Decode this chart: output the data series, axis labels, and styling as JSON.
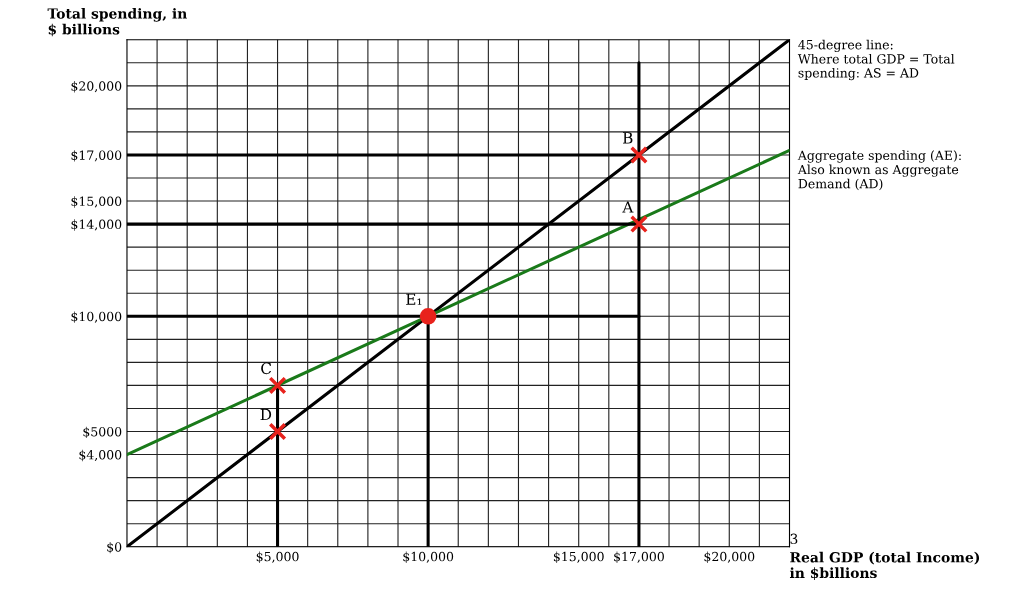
{
  "chart_data": {
    "type": "line",
    "xlabel": "Real GDP (total Income)\nin $billions",
    "ylabel": "Total spending, in\n$ billions",
    "xlim": [
      0,
      22000
    ],
    "ylim": [
      0,
      22000
    ],
    "xticks": [
      {
        "value": 1000,
        "label": null
      },
      {
        "value": 2000,
        "label": null
      },
      {
        "value": 3000,
        "label": null
      },
      {
        "value": 4000,
        "label": null
      },
      {
        "value": 5000,
        "label": "$5,000"
      },
      {
        "value": 6000,
        "label": null
      },
      {
        "value": 7000,
        "label": null
      },
      {
        "value": 8000,
        "label": null
      },
      {
        "value": 9000,
        "label": null
      },
      {
        "value": 10000,
        "label": "$10,000"
      },
      {
        "value": 11000,
        "label": null
      },
      {
        "value": 12000,
        "label": null
      },
      {
        "value": 13000,
        "label": null
      },
      {
        "value": 14000,
        "label": null
      },
      {
        "value": 15000,
        "label": "$15,000"
      },
      {
        "value": 16000,
        "label": null
      },
      {
        "value": 17000,
        "label": "$17,000"
      },
      {
        "value": 18000,
        "label": null
      },
      {
        "value": 19000,
        "label": null
      },
      {
        "value": 20000,
        "label": "$20,000"
      },
      {
        "value": 21000,
        "label": null
      }
    ],
    "yticks": [
      {
        "value": 0,
        "label": "$0"
      },
      {
        "value": 1000,
        "label": null
      },
      {
        "value": 2000,
        "label": null
      },
      {
        "value": 3000,
        "label": null
      },
      {
        "value": 4000,
        "label": "$4,000"
      },
      {
        "value": 5000,
        "label": "$5000"
      },
      {
        "value": 6000,
        "label": null
      },
      {
        "value": 7000,
        "label": null
      },
      {
        "value": 8000,
        "label": null
      },
      {
        "value": 9000,
        "label": null
      },
      {
        "value": 10000,
        "label": "$10,000"
      },
      {
        "value": 11000,
        "label": null
      },
      {
        "value": 12000,
        "label": null
      },
      {
        "value": 13000,
        "label": null
      },
      {
        "value": 14000,
        "label": "$14,000"
      },
      {
        "value": 15000,
        "label": "$15,000"
      },
      {
        "value": 16000,
        "label": null
      },
      {
        "value": 17000,
        "label": "$17,000"
      },
      {
        "value": 18000,
        "label": null
      },
      {
        "value": 19000,
        "label": null
      },
      {
        "value": 20000,
        "label": "$20,000"
      },
      {
        "value": 21000,
        "label": null
      }
    ],
    "grid": true,
    "series": [
      {
        "color": "#000000",
        "x": [
          0,
          22000
        ],
        "values": [
          0,
          22000
        ]
      },
      {
        "color": "#1a7a1a",
        "x": [
          0,
          22000
        ],
        "values": [
          4000,
          17200
        ]
      },
      {
        "color": "#000000",
        "x": [
          0,
          17000
        ],
        "values": [
          17000,
          17000
        ]
      },
      {
        "color": "#000000",
        "x": [
          0,
          17000
        ],
        "values": [
          14000,
          14000
        ]
      },
      {
        "color": "#000000",
        "x": [
          0,
          17000
        ],
        "values": [
          10000,
          10000
        ]
      },
      {
        "color": "#000000",
        "x": [
          5000,
          5000
        ],
        "values": [
          0,
          7000
        ]
      },
      {
        "color": "#000000",
        "x": [
          10000,
          10000
        ],
        "values": [
          0,
          10000
        ]
      },
      {
        "color": "#000000",
        "x": [
          17000,
          17000
        ],
        "values": [
          0,
          21000
        ]
      },
      {
        "type": "scatter",
        "marker": "circle",
        "color": "#e8221c",
        "x": [
          10000
        ],
        "values": [
          10000
        ]
      },
      {
        "type": "scatter",
        "marker": "cross",
        "color": "#e8221c",
        "x": [
          17000,
          17000,
          5000,
          5000
        ],
        "values": [
          17000,
          14000,
          7000,
          5000
        ]
      }
    ],
    "annotations": [
      {
        "text": "45-degree line:\nWhere total GDP = Total\nspending: AS = AD",
        "x": 22000,
        "y": 22000
      },
      {
        "text": "Aggregate spending (AE):\nAlso known as Aggregate\nDemand (AD)",
        "x": 22000,
        "y": 17200
      },
      {
        "text": "B",
        "x": 17000,
        "y": 17000
      },
      {
        "text": "A",
        "x": 17000,
        "y": 14000
      },
      {
        "text": "E₁",
        "x": 10000,
        "y": 10000
      },
      {
        "text": "C",
        "x": 5000,
        "y": 7000
      },
      {
        "text": "D",
        "x": 5000,
        "y": 5000
      },
      "3"
    ]
  }
}
